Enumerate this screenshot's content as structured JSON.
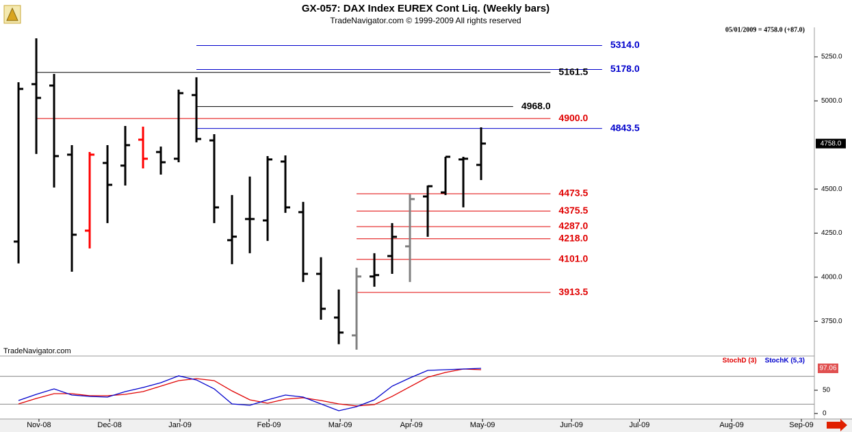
{
  "chart_data": [
    {
      "type": "ohlc",
      "title": "GX-057:  DAX Index EUREX Cont Liq.  (Weekly bars)",
      "subtitle": "TradeNavigator.com © 1999-2009 All rights reserved",
      "status": "05/01/2009 = 4758.0 (+87.0)",
      "watermark": "TradeNavigator.com",
      "x": [
        0,
        1,
        2,
        3,
        4,
        5,
        6,
        7,
        8,
        9,
        10,
        11,
        12,
        13,
        14,
        15,
        16,
        17,
        18,
        19,
        20,
        21,
        22,
        23,
        24,
        25,
        26
      ],
      "open": [
        4202,
        5095,
        5087,
        4695,
        4264,
        4648,
        4633,
        4780,
        4710,
        4672,
        5033,
        4776,
        4210,
        4330,
        4322,
        4656,
        4369,
        4019,
        3771,
        3670,
        4004,
        4120,
        4175,
        4458,
        4481,
        4668,
        4637
      ],
      "high": [
        5106,
        5355,
        5153,
        4749,
        4710,
        4749,
        4858,
        4854,
        4741,
        5064,
        5134,
        4811,
        4466,
        4571,
        4687,
        4691,
        4427,
        4113,
        3930,
        4054,
        4136,
        4307,
        4470,
        4520,
        4683,
        4683,
        4850
      ],
      "low": [
        4078,
        4699,
        4509,
        4031,
        4163,
        4307,
        4520,
        4617,
        4582,
        4652,
        4765,
        4307,
        4074,
        4136,
        4206,
        4365,
        3973,
        3759,
        3620,
        3589,
        3946,
        4019,
        3973,
        4229,
        4466,
        4396,
        4551
      ],
      "close": [
        5068,
        5017,
        4687,
        4241,
        4695,
        4524,
        4749,
        4672,
        4652,
        5044,
        4784,
        4396,
        4230,
        4330,
        4668,
        4396,
        4019,
        3821,
        3686,
        4004,
        4012,
        4229,
        4443,
        4516,
        4683,
        4672,
        4758
      ],
      "bar_colors": [
        "#000000",
        "#000000",
        "#000000",
        "#000000",
        "#ff0000",
        "#000000",
        "#000000",
        "#ff0000",
        "#000000",
        "#000000",
        "#000000",
        "#000000",
        "#000000",
        "#000000",
        "#000000",
        "#000000",
        "#000000",
        "#000000",
        "#000000",
        "#808080",
        "#000000",
        "#000000",
        "#808080",
        "#000000",
        "#000000",
        "#000000",
        "#000000"
      ],
      "xlim": [
        -1.04,
        44.73
      ],
      "ylim": [
        3553,
        5417
      ],
      "yticks": [
        {
          "value": 3750,
          "label": "3750.0"
        },
        {
          "value": 4000,
          "label": "4000.0"
        },
        {
          "value": 4250,
          "label": "4250.0"
        },
        {
          "value": 4500,
          "label": "4500.0"
        },
        {
          "value": 5000,
          "label": "5000.0"
        },
        {
          "value": 5250,
          "label": "5250.0"
        }
      ],
      "price_marker": {
        "value": 4758,
        "label": "4758.0"
      },
      "levels": [
        {
          "value": 5314,
          "label": "5314.0",
          "color": "#0000cc",
          "from": 10,
          "to": 32.8
        },
        {
          "value": 5178,
          "label": "5178.0",
          "color": "#0000cc",
          "from": 10,
          "to": 32.8
        },
        {
          "value": 5161.5,
          "label": "5161.5",
          "color": "#000000",
          "from": 1,
          "to": 29.9
        },
        {
          "value": 4968,
          "label": "4968.0",
          "color": "#000000",
          "from": 10,
          "to": 27.8
        },
        {
          "value": 4900,
          "label": "4900.0",
          "color": "#e00000",
          "from": 1,
          "to": 29.9
        },
        {
          "value": 4843.5,
          "label": "4843.5",
          "color": "#0000cc",
          "from": 10,
          "to": 32.8
        },
        {
          "value": 4473.5,
          "label": "4473.5",
          "color": "#e00000",
          "from": 19,
          "to": 29.9
        },
        {
          "value": 4375.5,
          "label": "4375.5",
          "color": "#e00000",
          "from": 19,
          "to": 29.9
        },
        {
          "value": 4287,
          "label": "4287.0",
          "color": "#e00000",
          "from": 19,
          "to": 29.9
        },
        {
          "value": 4218,
          "label": "4218.0",
          "color": "#e00000",
          "from": 19,
          "to": 29.9
        },
        {
          "value": 4101,
          "label": "4101.0",
          "color": "#e00000",
          "from": 19,
          "to": 29.9
        },
        {
          "value": 3913.5,
          "label": "3913.5",
          "color": "#e00000",
          "from": 19,
          "to": 29.9
        }
      ]
    },
    {
      "type": "line",
      "x": [
        0,
        1,
        2,
        3,
        4,
        5,
        6,
        7,
        8,
        9,
        10,
        11,
        12,
        13,
        14,
        15,
        16,
        17,
        18,
        19,
        20,
        21,
        22,
        23,
        24,
        25,
        26
      ],
      "series": [
        {
          "name": "StochD (3)",
          "color": "#e00000",
          "values": [
            20.6,
            32.4,
            42.6,
            42.6,
            38.2,
            38.2,
            41.2,
            47.1,
            58.8,
            70.6,
            75,
            70.6,
            48.5,
            29.4,
            22.1,
            30.9,
            33.8,
            27.9,
            20.6,
            16.2,
            19.1,
            36.8,
            57.4,
            77.9,
            88.2,
            95.6,
            94.1
          ]
        },
        {
          "name": "StochK (5,3)",
          "color": "#0000cc",
          "values": [
            27.9,
            41.2,
            52.9,
            39.7,
            36.8,
            35.3,
            47.1,
            55.9,
            66.2,
            80.9,
            72.1,
            52.9,
            20.6,
            17.6,
            29.4,
            39.7,
            35.3,
            20.6,
            5.9,
            14.7,
            29.4,
            58.8,
            76.5,
            92.6,
            94.1,
            95.6,
            97.06
          ]
        }
      ],
      "xlim": [
        -1.04,
        44.73
      ],
      "ylim": [
        -11.8,
        120.6
      ],
      "yticks": [
        0,
        50
      ],
      "levels": [
        20,
        80
      ],
      "xticks": [
        {
          "value": 1.15,
          "label": "Nov-08"
        },
        {
          "value": 5.12,
          "label": "Dec-08"
        },
        {
          "value": 9.08,
          "label": "Jan-09"
        },
        {
          "value": 14.08,
          "label": "Feb-09"
        },
        {
          "value": 18.08,
          "label": "Mar-09"
        },
        {
          "value": 22.08,
          "label": "Apr-09"
        },
        {
          "value": 26.08,
          "label": "May-09"
        },
        {
          "value": 31.08,
          "label": "Jun-09"
        },
        {
          "value": 34.9,
          "label": "Jul-09"
        },
        {
          "value": 40.08,
          "label": "Aug-09"
        },
        {
          "value": 44.0,
          "label": "Sep-09"
        }
      ]
    }
  ]
}
